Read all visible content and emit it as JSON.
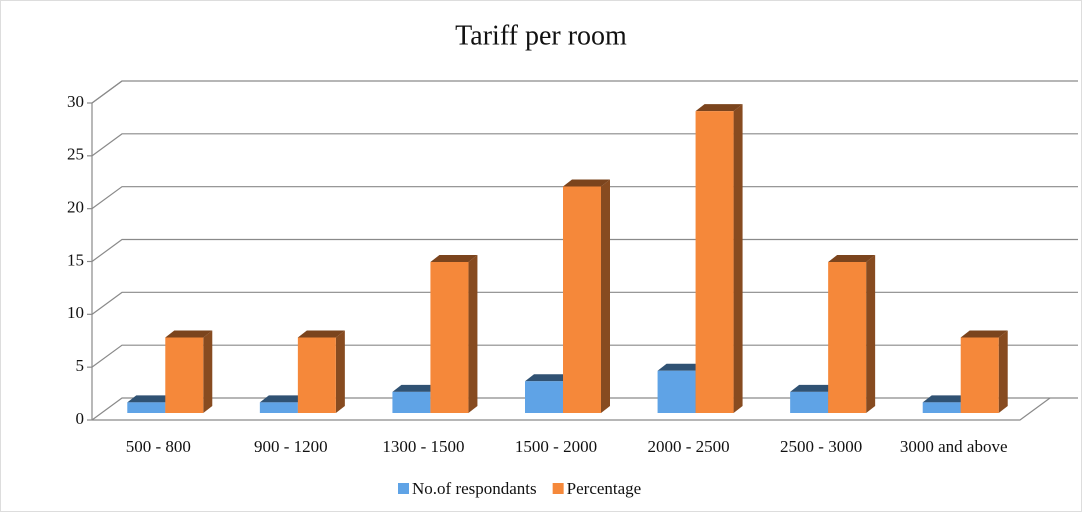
{
  "chart_data": {
    "type": "bar3d",
    "title": "Tariff per room",
    "categories": [
      "500 - 800",
      "900 - 1200",
      "1300 - 1500",
      "1500 - 2000",
      "2000 - 2500",
      "2500 - 3000",
      "3000 and above"
    ],
    "series": [
      {
        "name": "No.of respondants",
        "color": "#5fa3e6",
        "values": [
          1,
          1,
          2,
          3,
          4,
          2,
          1
        ]
      },
      {
        "name": "Percentage",
        "color": "#f5883a",
        "values": [
          7.14,
          7.14,
          14.29,
          21.43,
          28.57,
          14.29,
          7.14
        ]
      }
    ],
    "ylim": [
      0,
      30
    ],
    "yticks": [
      0,
      5,
      10,
      15,
      20,
      25,
      30
    ],
    "grid": true,
    "legend": "bottom"
  }
}
